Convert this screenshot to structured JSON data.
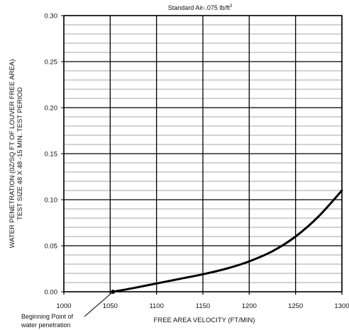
{
  "chart_data": {
    "type": "line",
    "title": "Standard Air-.075 lb/ft",
    "title_superscript": "3",
    "xlabel": "FREE AREA VELOCITY (FT/MIN)",
    "ylabel_line1": "WATER PENETRATION (0Z/SQ FT OF LOUVER FREE AREA)",
    "ylabel_line2": "TEST SIZE 48 X 48 -15 MIN. TEST PERIOD",
    "xlim": [
      1000,
      1300
    ],
    "ylim": [
      0,
      0.3
    ],
    "x_ticks": [
      1000,
      1050,
      1100,
      1150,
      1200,
      1250,
      1300
    ],
    "x_tick_labels": [
      "1000",
      "1050",
      "1100",
      "1150",
      "1200",
      "1250",
      "1300"
    ],
    "y_ticks": [
      0,
      0.05,
      0.1,
      0.15,
      0.2,
      0.25,
      0.3
    ],
    "y_tick_labels": [
      "0.00",
      "0.05",
      "0.10",
      "0.15",
      "0.20",
      "0.25",
      "0.30"
    ],
    "grid": true,
    "minor_y_step": 0.01,
    "series": [
      {
        "x": [
          1053,
          1075,
          1100,
          1125,
          1150,
          1175,
          1200,
          1225,
          1250,
          1275,
          1300
        ],
        "y": [
          0.0,
          0.004,
          0.009,
          0.014,
          0.019,
          0.025,
          0.033,
          0.044,
          0.06,
          0.082,
          0.11
        ]
      }
    ],
    "annotation": {
      "text_line1": "Beginning Point of",
      "text_line2": "water penetration",
      "x": 1053,
      "y": 0.0
    },
    "colors": {
      "line": "#000000",
      "major_grid": "#000000",
      "minor_grid": "#888888"
    }
  }
}
